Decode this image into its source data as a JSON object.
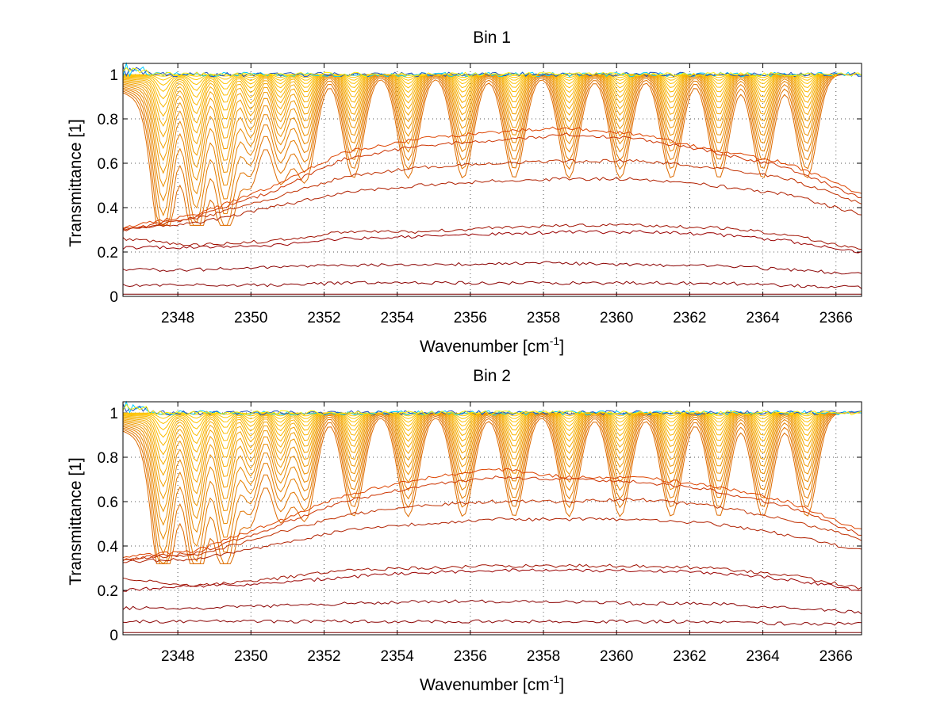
{
  "chart_data": [
    {
      "type": "line",
      "title": "Bin 1",
      "xlabel": "Wavenumber [cm",
      "xlabel_sup": "-1",
      "xlabel_close": "]",
      "ylabel": "Transmittance [1]",
      "xlim": [
        2346.5,
        2366.7
      ],
      "ylim": [
        0,
        1.05
      ],
      "xticks": [
        "2348",
        "2350",
        "2352",
        "2354",
        "2356",
        "2358",
        "2360",
        "2362",
        "2364",
        "2366"
      ],
      "yticks": [
        "0",
        "0.2",
        "0.4",
        "0.6",
        "0.8",
        "1"
      ],
      "grid": true,
      "legend": "none",
      "series_count": 40,
      "series": [
        {
          "color": "#6b0000",
          "values": [
            0,
            0,
            0,
            0,
            0,
            0,
            0,
            0,
            0,
            0,
            0
          ]
        },
        {
          "color": "#7a0000",
          "values": [
            0.01,
            0.01,
            0.01,
            0.01,
            0.01,
            0.01,
            0.01,
            0.01,
            0.01,
            0.01,
            0.01
          ]
        },
        {
          "color": "#8a0000",
          "values": [
            0.05,
            0.05,
            0.05,
            0.06,
            0.06,
            0.06,
            0.06,
            0.06,
            0.06,
            0.05,
            0.04
          ]
        },
        {
          "color": "#8a0000",
          "values": [
            0.12,
            0.12,
            0.13,
            0.14,
            0.14,
            0.15,
            0.15,
            0.14,
            0.14,
            0.12,
            0.1
          ]
        },
        {
          "color": "#9a0000",
          "values": [
            0.22,
            0.22,
            0.23,
            0.26,
            0.27,
            0.28,
            0.29,
            0.29,
            0.28,
            0.25,
            0.2
          ]
        },
        {
          "color": "#a01000",
          "values": [
            0.26,
            0.23,
            0.25,
            0.29,
            0.29,
            0.31,
            0.32,
            0.32,
            0.31,
            0.28,
            0.21
          ]
        },
        {
          "color": "#b02000",
          "values": [
            0.3,
            0.33,
            0.4,
            0.47,
            0.5,
            0.52,
            0.53,
            0.53,
            0.5,
            0.46,
            0.37
          ]
        },
        {
          "color": "#c03000",
          "values": [
            0.3,
            0.35,
            0.44,
            0.54,
            0.58,
            0.6,
            0.61,
            0.61,
            0.58,
            0.53,
            0.42
          ]
        },
        {
          "color": "#cc3300",
          "values": [
            0.3,
            0.36,
            0.47,
            0.62,
            0.68,
            0.7,
            0.73,
            0.71,
            0.65,
            0.58,
            0.44
          ]
        },
        {
          "color": "#dd4400",
          "values": [
            0.31,
            0.37,
            0.49,
            0.65,
            0.71,
            0.74,
            0.76,
            0.73,
            0.66,
            0.6,
            0.46
          ]
        }
      ]
    },
    {
      "type": "line",
      "title": "Bin 2",
      "xlabel": "Wavenumber [cm",
      "xlabel_sup": "-1",
      "xlabel_close": "]",
      "ylabel": "Transmittance [1]",
      "xlim": [
        2346.5,
        2366.7
      ],
      "ylim": [
        0,
        1.05
      ],
      "xticks": [
        "2348",
        "2350",
        "2352",
        "2354",
        "2356",
        "2358",
        "2360",
        "2362",
        "2364",
        "2366"
      ],
      "yticks": [
        "0",
        "0.2",
        "0.4",
        "0.6",
        "0.8",
        "1"
      ],
      "grid": true,
      "legend": "none",
      "series_count": 40,
      "series": [
        {
          "color": "#6b0000",
          "values": [
            0,
            0,
            0,
            0,
            0,
            0,
            0,
            0,
            0,
            0,
            0
          ]
        },
        {
          "color": "#7a0000",
          "values": [
            0.01,
            0.01,
            0.01,
            0.01,
            0.01,
            0.01,
            0.01,
            0.01,
            0.01,
            0.01,
            0.01
          ]
        },
        {
          "color": "#8a0000",
          "values": [
            0.06,
            0.06,
            0.06,
            0.06,
            0.06,
            0.06,
            0.06,
            0.06,
            0.06,
            0.05,
            0.05
          ]
        },
        {
          "color": "#8a0000",
          "values": [
            0.12,
            0.12,
            0.13,
            0.14,
            0.15,
            0.15,
            0.15,
            0.14,
            0.14,
            0.12,
            0.1
          ]
        },
        {
          "color": "#9a0000",
          "values": [
            0.2,
            0.22,
            0.23,
            0.26,
            0.28,
            0.29,
            0.29,
            0.29,
            0.28,
            0.25,
            0.2
          ]
        },
        {
          "color": "#a01000",
          "values": [
            0.25,
            0.22,
            0.25,
            0.29,
            0.3,
            0.31,
            0.31,
            0.31,
            0.3,
            0.27,
            0.21
          ]
        },
        {
          "color": "#b02000",
          "values": [
            0.33,
            0.34,
            0.4,
            0.47,
            0.5,
            0.52,
            0.52,
            0.52,
            0.5,
            0.45,
            0.38
          ]
        },
        {
          "color": "#c03000",
          "values": [
            0.34,
            0.36,
            0.45,
            0.54,
            0.58,
            0.6,
            0.6,
            0.61,
            0.58,
            0.52,
            0.43
          ]
        },
        {
          "color": "#cc3300",
          "values": [
            0.34,
            0.37,
            0.48,
            0.6,
            0.67,
            0.71,
            0.7,
            0.69,
            0.65,
            0.58,
            0.45
          ]
        },
        {
          "color": "#dd4400",
          "values": [
            0.35,
            0.38,
            0.5,
            0.63,
            0.7,
            0.75,
            0.71,
            0.71,
            0.67,
            0.6,
            0.47
          ]
        }
      ]
    }
  ]
}
